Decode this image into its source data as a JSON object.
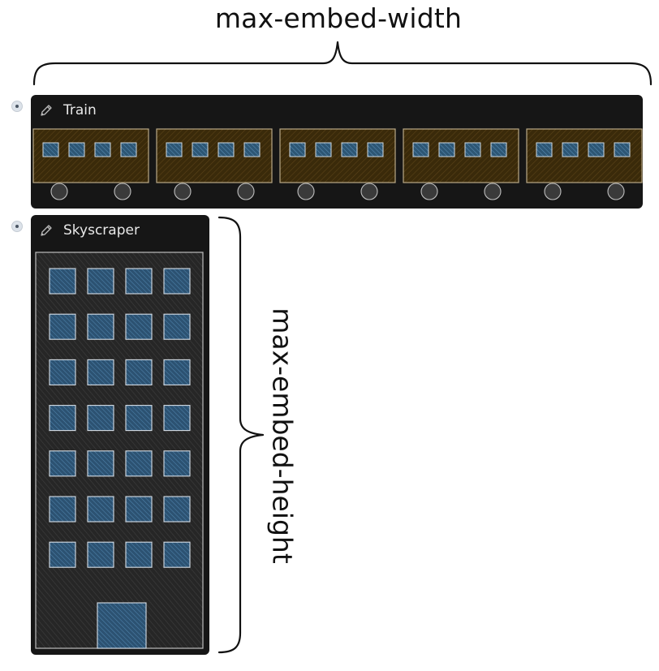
{
  "annotations": {
    "width_label": "max-embed-width",
    "height_label": "max-embed-height"
  },
  "embeds": [
    {
      "title": "Train",
      "icon": "pencil-icon",
      "cars": 5,
      "windows_per_car": 4
    },
    {
      "title": "Skyscraper",
      "icon": "pencil-icon",
      "window_rows": 7,
      "window_cols": 4
    }
  ],
  "colors": {
    "embed_background": "#161616",
    "train_car": "#3a2a0a",
    "window": "#3b6e96",
    "wheel": "#3a3a3a",
    "building": "#2a2a2a"
  }
}
